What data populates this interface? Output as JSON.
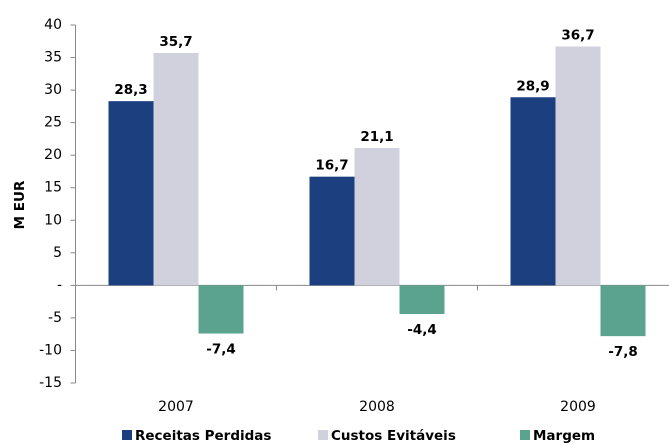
{
  "chart_data": {
    "type": "bar",
    "y_label": "M EUR",
    "categories": [
      "2007",
      "2008",
      "2009"
    ],
    "series": [
      {
        "name": "Receitas Perdidas",
        "color": "#1c3f80",
        "values": [
          28.3,
          16.7,
          28.9
        ],
        "value_labels": [
          "28,3",
          "16,7",
          "28,9"
        ]
      },
      {
        "name": "Custos Evitáveis",
        "color": "#d1d1dd",
        "values": [
          35.7,
          21.1,
          36.7
        ],
        "value_labels": [
          "35,7",
          "21,1",
          "36,7"
        ]
      },
      {
        "name": "Margem",
        "color": "#5ba38e",
        "values": [
          -7.4,
          -4.4,
          -7.8
        ],
        "value_labels": [
          "-7,4",
          "-4,4",
          "-7,8"
        ]
      }
    ],
    "ylim": [
      -15,
      40
    ],
    "yticks": [
      -15,
      -10,
      -5,
      {
        "value": 0,
        "label": "-"
      },
      5,
      10,
      15,
      20,
      25,
      30,
      35,
      40
    ],
    "legend": "bottom"
  }
}
